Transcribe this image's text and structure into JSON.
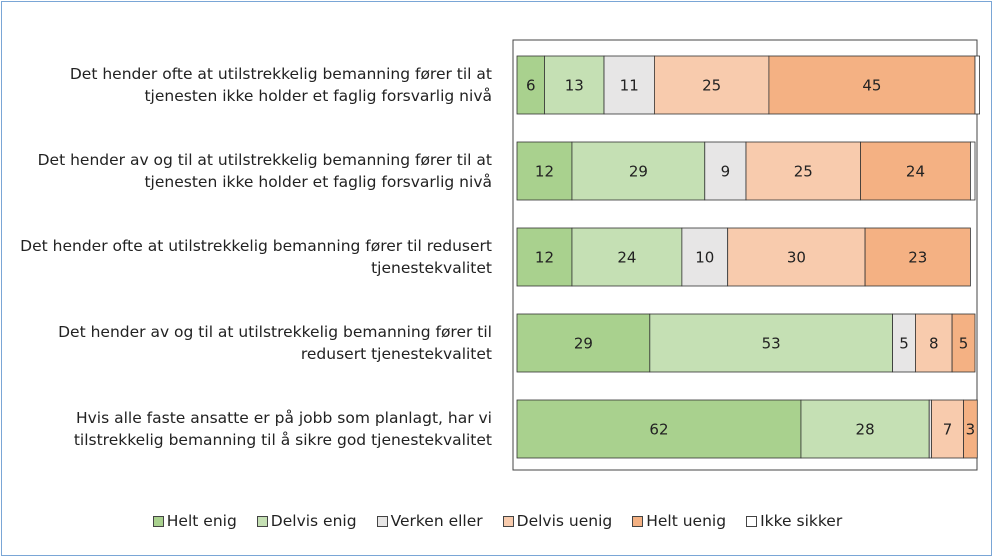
{
  "chart_data": {
    "type": "stacked_bar_horizontal",
    "categories": [
      "Det hender ofte at utilstrekkelig bemanning fører til at tjenesten ikke holder et faglig forsvarlig nivå",
      "Det hender av og til at utilstrekkelig bemanning fører til at tjenesten ikke holder et faglig forsvarlig nivå",
      "Det hender ofte at utilstrekkelig bemanning fører til redusert tjenestekvalitet",
      "Det hender av og til at utilstrekkelig bemanning fører til redusert tjenestekvalitet",
      "Hvis alle faste ansatte er på jobb som planlagt, har vi tilstrekkelig bemanning til å sikre god tjenestekvalitet"
    ],
    "series": [
      {
        "name": "Helt enig",
        "color": "#a9d18e",
        "values": [
          6,
          12,
          12,
          29,
          62
        ]
      },
      {
        "name": "Delvis enig",
        "color": "#c5e0b4",
        "values": [
          13,
          29,
          24,
          53,
          28
        ]
      },
      {
        "name": "Verken eller",
        "color": "#e7e6e6",
        "values": [
          11,
          9,
          10,
          5,
          0.5
        ]
      },
      {
        "name": "Delvis uenig",
        "color": "#f8cbad",
        "values": [
          25,
          25,
          30,
          8,
          7
        ]
      },
      {
        "name": "Helt uenig",
        "color": "#f4b183",
        "values": [
          45,
          24,
          23,
          5,
          3
        ]
      },
      {
        "name": "Ikke sikker",
        "color": "#ffffff",
        "values": [
          1,
          1,
          0,
          0,
          0
        ]
      }
    ],
    "xlim": [
      0,
      100
    ]
  }
}
